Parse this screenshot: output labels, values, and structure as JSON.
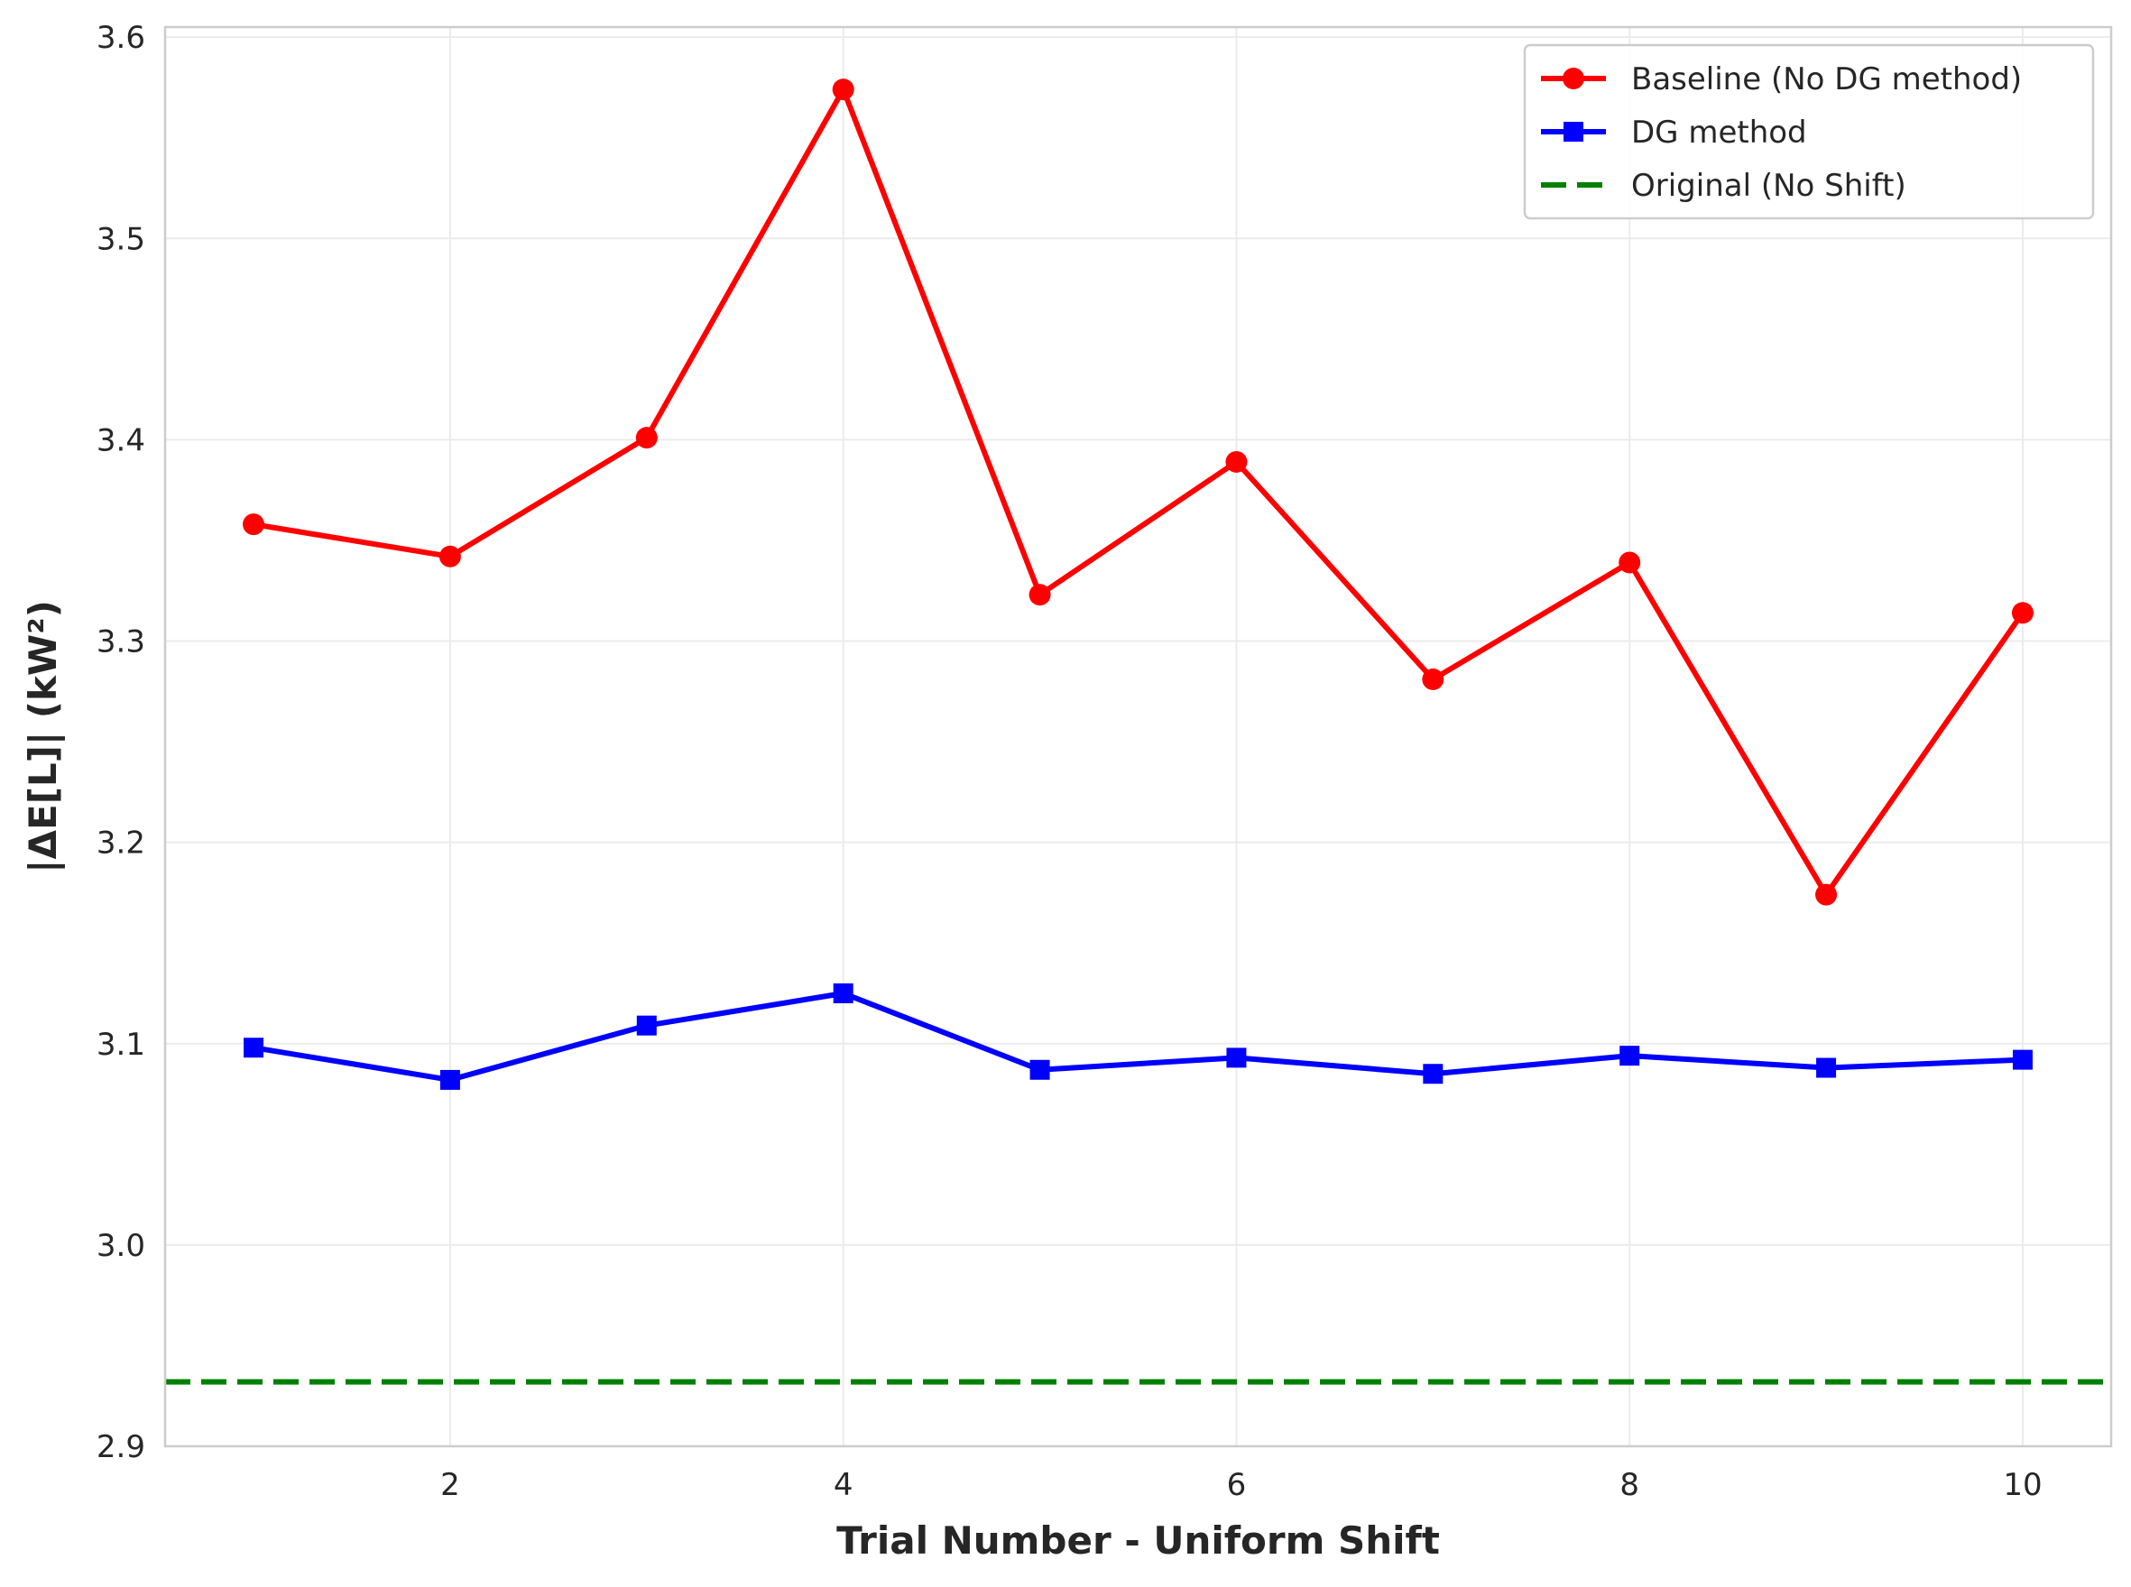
{
  "chart_data": {
    "type": "line",
    "title": "",
    "xlabel": "Trial Number - Uniform Shift",
    "ylabel": "|ΔE[L]| (kW²)",
    "x": [
      1,
      2,
      3,
      4,
      5,
      6,
      7,
      8,
      9,
      10
    ],
    "xlim": [
      0.55,
      10.45
    ],
    "ylim": [
      2.9,
      3.605
    ],
    "xticks": [
      2,
      4,
      6,
      8,
      10
    ],
    "yticks": [
      2.9,
      3.0,
      3.1,
      3.2,
      3.3,
      3.4,
      3.5,
      3.6
    ],
    "xtick_labels": [
      "2",
      "4",
      "6",
      "8",
      "10"
    ],
    "ytick_labels": [
      "2.9",
      "3.0",
      "3.1",
      "3.2",
      "3.3",
      "3.4",
      "3.5",
      "3.6"
    ],
    "grid": true,
    "legend_position": "top-right",
    "series": [
      {
        "name": "Baseline (No DG method)",
        "color": "#ff0000",
        "marker": "circle",
        "values": [
          3.358,
          3.342,
          3.401,
          3.574,
          3.323,
          3.389,
          3.281,
          3.339,
          3.174,
          3.314
        ]
      },
      {
        "name": "DG method",
        "color": "#0000ff",
        "marker": "square",
        "values": [
          3.098,
          3.082,
          3.109,
          3.125,
          3.087,
          3.093,
          3.085,
          3.094,
          3.088,
          3.092
        ]
      }
    ],
    "reference_lines": [
      {
        "name": "Original (No Shift)",
        "color": "#008000",
        "style": "dashed",
        "y": 2.932
      }
    ]
  }
}
